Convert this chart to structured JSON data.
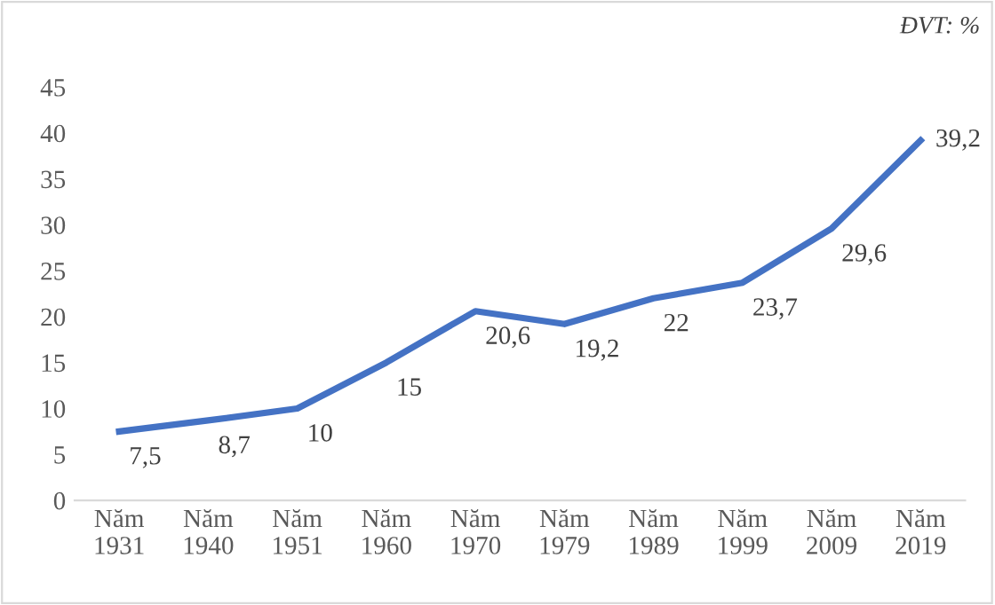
{
  "chart_data": {
    "type": "line",
    "categories": [
      "Năm\n1931",
      "Năm\n1940",
      "Năm\n1951",
      "Năm\n1960",
      "Năm\n1970",
      "Năm\n1979",
      "Năm\n1989",
      "Năm\n1999",
      "Năm\n2009",
      "Năm\n2019"
    ],
    "series": [
      {
        "color": "#4472c4",
        "values": [
          7.5,
          8.7,
          10,
          15,
          20.6,
          19.2,
          22,
          23.7,
          29.6,
          39.2
        ],
        "value_labels": [
          "7,5",
          "8,7",
          "10",
          "15",
          "20,6",
          "19,2",
          "22",
          "23,7",
          "29,6",
          "39,2"
        ]
      }
    ],
    "ylim": [
      0,
      45
    ],
    "yticks": [
      0,
      5,
      10,
      15,
      20,
      25,
      30,
      35,
      40,
      45
    ],
    "annotations": [
      "ĐVT: %"
    ],
    "grid": false,
    "legend": false,
    "marker": "none",
    "line_style": "solid"
  }
}
